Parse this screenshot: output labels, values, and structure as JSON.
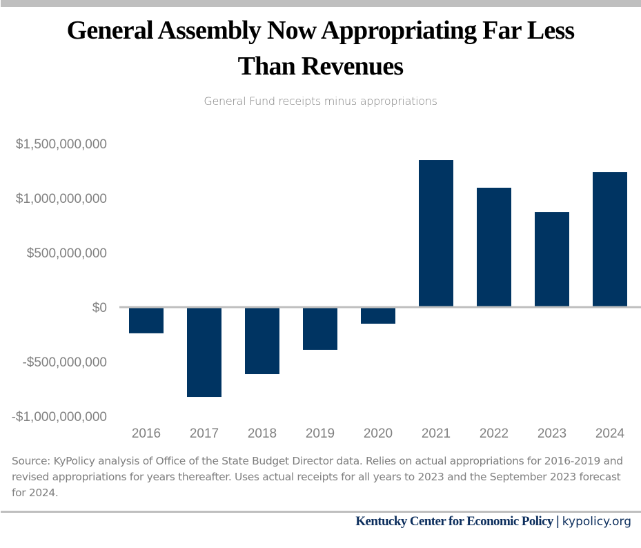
{
  "header": {
    "title_line1": "General Assembly Now Appropriating Far Less",
    "title_line2": "Than Revenues",
    "subtitle": "General Fund receipts minus appropriations"
  },
  "chart_data": {
    "type": "bar",
    "title": "General Assembly Now Appropriating Far Less Than Revenues",
    "subtitle": "General Fund receipts minus appropriations",
    "xlabel": "",
    "ylabel": "",
    "categories": [
      "2016",
      "2017",
      "2018",
      "2019",
      "2020",
      "2021",
      "2022",
      "2023",
      "2024"
    ],
    "values": [
      -240000000,
      -823000000,
      -614000000,
      -392000000,
      -152000000,
      1348000000,
      1095000000,
      873000000,
      1240000000
    ],
    "ylim": [
      -1000000000,
      1500000000
    ],
    "yticks": [
      1500000000,
      1000000000,
      500000000,
      0,
      -500000000,
      -1000000000
    ],
    "ytick_labels": [
      "$1,500,000,000",
      "$1,000,000,000",
      "$500,000,000",
      "$0",
      "-$500,000,000",
      "-$1,000,000,000"
    ],
    "grid": false,
    "legend": "none",
    "bar_color": "#003462",
    "zero_line_color": "#bfbfbf"
  },
  "source_note": "Source: KyPolicy analysis of Office of the State Budget Director data. Relies on actual appropriations for 2016-2019 and revised appropriations for years thereafter. Uses actual receipts for all years to 2023 and the September 2023 forecast for 2024.",
  "footer": {
    "org": "Kentucky Center for Economic Policy",
    "separator": "|",
    "url": "kypolicy.org"
  }
}
